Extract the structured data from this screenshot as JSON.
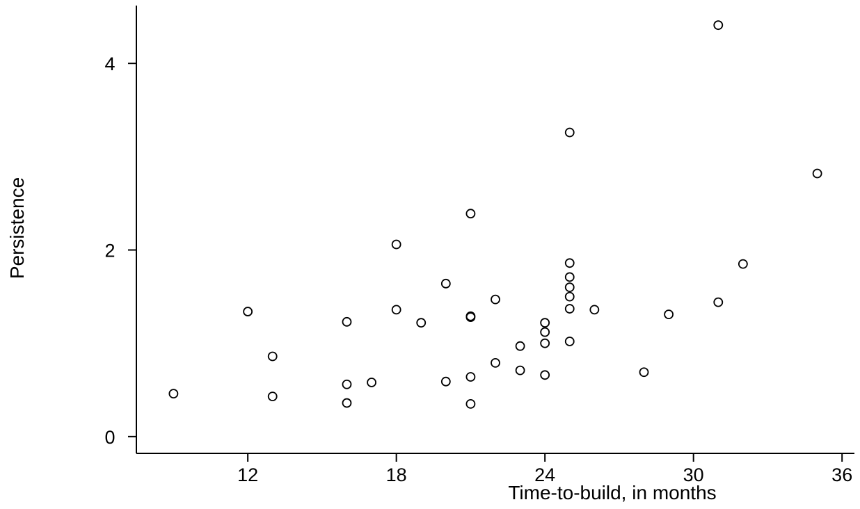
{
  "chart_data": {
    "type": "scatter",
    "title": "",
    "xlabel": "Time-to-build, in months",
    "ylabel": "Persistence",
    "xlim": [
      7.5,
      36.5
    ],
    "ylim": [
      -0.18,
      4.62
    ],
    "xticks": [
      12,
      18,
      24,
      30,
      36
    ],
    "yticks": [
      0,
      2,
      4
    ],
    "grid": false,
    "legend": "none",
    "points": [
      {
        "x": 9,
        "y": 0.46
      },
      {
        "x": 12,
        "y": 1.34
      },
      {
        "x": 13,
        "y": 0.86
      },
      {
        "x": 13,
        "y": 0.43
      },
      {
        "x": 16,
        "y": 1.23
      },
      {
        "x": 16,
        "y": 0.56
      },
      {
        "x": 16,
        "y": 0.36
      },
      {
        "x": 17,
        "y": 0.58
      },
      {
        "x": 18,
        "y": 2.06
      },
      {
        "x": 18,
        "y": 1.36
      },
      {
        "x": 19,
        "y": 1.22
      },
      {
        "x": 20,
        "y": 1.64
      },
      {
        "x": 20,
        "y": 0.59
      },
      {
        "x": 21,
        "y": 2.39
      },
      {
        "x": 21,
        "y": 1.29
      },
      {
        "x": 21,
        "y": 1.28
      },
      {
        "x": 21,
        "y": 0.64
      },
      {
        "x": 21,
        "y": 0.35
      },
      {
        "x": 22,
        "y": 1.47
      },
      {
        "x": 22,
        "y": 0.79
      },
      {
        "x": 23,
        "y": 0.97
      },
      {
        "x": 23,
        "y": 0.71
      },
      {
        "x": 24,
        "y": 1.22
      },
      {
        "x": 24,
        "y": 1.12
      },
      {
        "x": 24,
        "y": 1.0
      },
      {
        "x": 24,
        "y": 0.66
      },
      {
        "x": 25,
        "y": 3.26
      },
      {
        "x": 25,
        "y": 1.86
      },
      {
        "x": 25,
        "y": 1.71
      },
      {
        "x": 25,
        "y": 1.6
      },
      {
        "x": 25,
        "y": 1.5
      },
      {
        "x": 25,
        "y": 1.37
      },
      {
        "x": 25,
        "y": 1.02
      },
      {
        "x": 26,
        "y": 1.36
      },
      {
        "x": 28,
        "y": 0.69
      },
      {
        "x": 29,
        "y": 1.31
      },
      {
        "x": 31,
        "y": 4.41
      },
      {
        "x": 31,
        "y": 1.44
      },
      {
        "x": 32,
        "y": 1.85
      },
      {
        "x": 35,
        "y": 2.82
      }
    ]
  }
}
